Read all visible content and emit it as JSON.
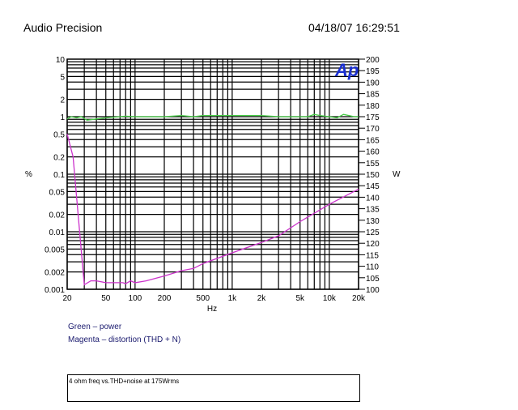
{
  "header": {
    "title": "Audio Precision",
    "datetime": "04/18/07 16:29:51"
  },
  "chart_data": {
    "type": "line",
    "xlabel": "Hz",
    "ylabel": "%",
    "y2label": "W",
    "xscale": "log",
    "xlim": [
      20,
      20000
    ],
    "yscale": "log",
    "ylim": [
      0.001,
      10
    ],
    "y2scale": "linear",
    "y2lim": [
      100,
      200
    ],
    "grid": true,
    "xticks": [
      {
        "v": 20,
        "l": "20"
      },
      {
        "v": 50,
        "l": "50"
      },
      {
        "v": 100,
        "l": "100"
      },
      {
        "v": 200,
        "l": "200"
      },
      {
        "v": 500,
        "l": "500"
      },
      {
        "v": 1000,
        "l": "1k"
      },
      {
        "v": 2000,
        "l": "2k"
      },
      {
        "v": 5000,
        "l": "5k"
      },
      {
        "v": 10000,
        "l": "10k"
      },
      {
        "v": 20000,
        "l": "20k"
      }
    ],
    "yticks": [
      {
        "v": 10,
        "l": "10"
      },
      {
        "v": 5,
        "l": "5"
      },
      {
        "v": 2,
        "l": "2"
      },
      {
        "v": 1,
        "l": "1"
      },
      {
        "v": 0.5,
        "l": "0.5"
      },
      {
        "v": 0.2,
        "l": "0.2"
      },
      {
        "v": 0.1,
        "l": "0.1"
      },
      {
        "v": 0.05,
        "l": "0.05"
      },
      {
        "v": 0.02,
        "l": "0.02"
      },
      {
        "v": 0.01,
        "l": "0.01"
      },
      {
        "v": 0.005,
        "l": "0.005"
      },
      {
        "v": 0.002,
        "l": "0.002"
      },
      {
        "v": 0.001,
        "l": "0.001"
      }
    ],
    "y2ticks": [
      100,
      105,
      110,
      115,
      120,
      125,
      130,
      135,
      140,
      145,
      150,
      155,
      160,
      165,
      170,
      175,
      180,
      185,
      190,
      195,
      200
    ],
    "series": [
      {
        "name": "Green – power",
        "color": "#44cc44",
        "axis": "right",
        "x": [
          20,
          22,
          25,
          28,
          32,
          40,
          50,
          60,
          80,
          100,
          200,
          300,
          400,
          500,
          1000,
          2000,
          3000,
          4500,
          5000,
          6000,
          7000,
          8000,
          10000,
          12000,
          14000,
          18000,
          20000
        ],
        "y": [
          174,
          175,
          174.5,
          175,
          173.5,
          174,
          174.5,
          174.8,
          175.2,
          175,
          175,
          175.5,
          175,
          175.5,
          175.5,
          175.5,
          175,
          175,
          175,
          175,
          176,
          175.5,
          175,
          174.5,
          176,
          175,
          175
        ]
      },
      {
        "name": "Magenta – distortion (THD + N)",
        "color": "#cc33cc",
        "axis": "left",
        "x": [
          20,
          23,
          30,
          35,
          40,
          50,
          75,
          80,
          90,
          100,
          130,
          200,
          300,
          400,
          500,
          1000,
          2000,
          3000,
          5000,
          10000,
          20000
        ],
        "y": [
          0.5,
          0.2,
          0.0012,
          0.0014,
          0.0014,
          0.0013,
          0.0013,
          0.00125,
          0.0014,
          0.0013,
          0.0014,
          0.0017,
          0.0021,
          0.0023,
          0.0028,
          0.0043,
          0.0065,
          0.0085,
          0.015,
          0.03,
          0.055
        ]
      }
    ]
  },
  "legend": [
    "Green – power",
    "Magenta – distortion (THD + N)"
  ],
  "notes": {
    "line1": "4 ohm freq vs.THD+noise at 175Wrms"
  },
  "logo": "Ap"
}
